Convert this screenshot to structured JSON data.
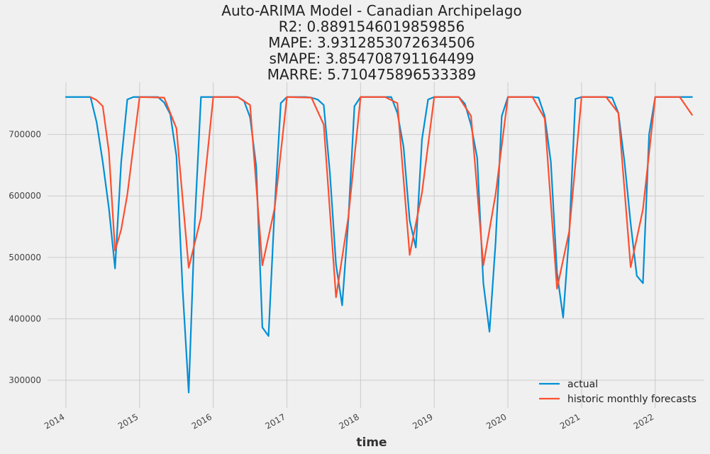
{
  "chart_data": {
    "type": "line",
    "title_lines": [
      "Auto-ARIMA Model - Canadian Archipelago",
      "R2: 0.8891546019859856",
      "MAPE: 3.9312853072634506",
      "sMAPE: 3.854708791164499",
      "MARRE: 5.710475896533389"
    ],
    "xlabel": "time",
    "ylabel": "",
    "x_ticks": [
      "2014",
      "2015",
      "2016",
      "2017",
      "2018",
      "2019",
      "2020",
      "2021",
      "2022"
    ],
    "y_ticks": [
      "300000",
      "400000",
      "500000",
      "600000",
      "700000"
    ],
    "ylim": [
      255000,
      785000
    ],
    "xlim": [
      "2013-10",
      "2022-09"
    ],
    "grid": true,
    "legend_position": "lower-right",
    "series": [
      {
        "name": "actual",
        "color": "#008fd5",
        "points": [
          [
            "2014-01",
            761000
          ],
          [
            "2014-02",
            761000
          ],
          [
            "2014-03",
            761000
          ],
          [
            "2014-04",
            761000
          ],
          [
            "2014-05",
            761000
          ],
          [
            "2014-06",
            720000
          ],
          [
            "2014-07",
            655000
          ],
          [
            "2014-08",
            580000
          ],
          [
            "2014-09",
            482000
          ],
          [
            "2014-10",
            655000
          ],
          [
            "2014-11",
            757000
          ],
          [
            "2014-12",
            761000
          ],
          [
            "2015-01",
            761000
          ],
          [
            "2015-02",
            761000
          ],
          [
            "2015-03",
            761000
          ],
          [
            "2015-04",
            761000
          ],
          [
            "2015-05",
            752000
          ],
          [
            "2015-06",
            733000
          ],
          [
            "2015-07",
            665000
          ],
          [
            "2015-08",
            450000
          ],
          [
            "2015-09",
            280000
          ],
          [
            "2015-10",
            560000
          ],
          [
            "2015-11",
            761000
          ],
          [
            "2015-12",
            761000
          ],
          [
            "2016-01",
            761000
          ],
          [
            "2016-02",
            761000
          ],
          [
            "2016-03",
            761000
          ],
          [
            "2016-04",
            761000
          ],
          [
            "2016-05",
            761000
          ],
          [
            "2016-06",
            755000
          ],
          [
            "2016-07",
            728000
          ],
          [
            "2016-08",
            648000
          ],
          [
            "2016-09",
            386000
          ],
          [
            "2016-10",
            372000
          ],
          [
            "2016-11",
            580000
          ],
          [
            "2016-12",
            751000
          ],
          [
            "2017-01",
            761000
          ],
          [
            "2017-02",
            761000
          ],
          [
            "2017-03",
            761000
          ],
          [
            "2017-04",
            761000
          ],
          [
            "2017-05",
            760000
          ],
          [
            "2017-06",
            757000
          ],
          [
            "2017-07",
            748000
          ],
          [
            "2017-08",
            638000
          ],
          [
            "2017-09",
            488000
          ],
          [
            "2017-10",
            422000
          ],
          [
            "2017-11",
            560000
          ],
          [
            "2017-12",
            746000
          ],
          [
            "2018-01",
            761000
          ],
          [
            "2018-02",
            761000
          ],
          [
            "2018-03",
            761000
          ],
          [
            "2018-04",
            761000
          ],
          [
            "2018-05",
            761000
          ],
          [
            "2018-06",
            761000
          ],
          [
            "2018-07",
            735000
          ],
          [
            "2018-08",
            680000
          ],
          [
            "2018-09",
            560000
          ],
          [
            "2018-10",
            516000
          ],
          [
            "2018-11",
            692000
          ],
          [
            "2018-12",
            757000
          ],
          [
            "2019-01",
            761000
          ],
          [
            "2019-02",
            761000
          ],
          [
            "2019-03",
            761000
          ],
          [
            "2019-04",
            761000
          ],
          [
            "2019-05",
            761000
          ],
          [
            "2019-06",
            750000
          ],
          [
            "2019-07",
            715000
          ],
          [
            "2019-08",
            662000
          ],
          [
            "2019-09",
            458000
          ],
          [
            "2019-10",
            379000
          ],
          [
            "2019-11",
            525000
          ],
          [
            "2019-12",
            730000
          ],
          [
            "2020-01",
            761000
          ],
          [
            "2020-02",
            761000
          ],
          [
            "2020-03",
            761000
          ],
          [
            "2020-04",
            761000
          ],
          [
            "2020-05",
            761000
          ],
          [
            "2020-06",
            760000
          ],
          [
            "2020-07",
            730000
          ],
          [
            "2020-08",
            655000
          ],
          [
            "2020-09",
            475000
          ],
          [
            "2020-10",
            402000
          ],
          [
            "2020-11",
            540000
          ],
          [
            "2020-12",
            758000
          ],
          [
            "2021-01",
            761000
          ],
          [
            "2021-02",
            761000
          ],
          [
            "2021-03",
            761000
          ],
          [
            "2021-04",
            761000
          ],
          [
            "2021-05",
            761000
          ],
          [
            "2021-06",
            760000
          ],
          [
            "2021-07",
            735000
          ],
          [
            "2021-08",
            655000
          ],
          [
            "2021-09",
            555000
          ],
          [
            "2021-10",
            470000
          ],
          [
            "2021-11",
            458000
          ],
          [
            "2021-12",
            700000
          ],
          [
            "2022-01",
            761000
          ],
          [
            "2022-02",
            761000
          ],
          [
            "2022-03",
            761000
          ],
          [
            "2022-04",
            761000
          ],
          [
            "2022-05",
            761000
          ],
          [
            "2022-06",
            761000
          ],
          [
            "2022-07",
            761000
          ]
        ]
      },
      {
        "name": "historic monthly forecasts",
        "color": "#fc4f30",
        "points": [
          [
            "2014-05",
            761000
          ],
          [
            "2014-06",
            756000
          ],
          [
            "2014-07",
            746000
          ],
          [
            "2014-08",
            672000
          ],
          [
            "2014-09",
            511000
          ],
          [
            "2014-10",
            545000
          ],
          [
            "2014-11",
            602000
          ],
          [
            "2015-01",
            761000
          ],
          [
            "2015-05",
            760000
          ],
          [
            "2015-07",
            710000
          ],
          [
            "2015-09",
            483000
          ],
          [
            "2015-11",
            565000
          ],
          [
            "2016-01",
            761000
          ],
          [
            "2016-05",
            761000
          ],
          [
            "2016-07",
            748000
          ],
          [
            "2016-09",
            487000
          ],
          [
            "2016-11",
            580000
          ],
          [
            "2017-01",
            761000
          ],
          [
            "2017-05",
            760000
          ],
          [
            "2017-07",
            716000
          ],
          [
            "2017-09",
            435000
          ],
          [
            "2017-11",
            565000
          ],
          [
            "2018-01",
            761000
          ],
          [
            "2018-05",
            761000
          ],
          [
            "2018-07",
            751000
          ],
          [
            "2018-09",
            504000
          ],
          [
            "2018-11",
            605000
          ],
          [
            "2019-01",
            761000
          ],
          [
            "2019-05",
            761000
          ],
          [
            "2019-07",
            730000
          ],
          [
            "2019-09",
            487000
          ],
          [
            "2019-11",
            603000
          ],
          [
            "2020-01",
            761000
          ],
          [
            "2020-05",
            761000
          ],
          [
            "2020-07",
            726000
          ],
          [
            "2020-09",
            449000
          ],
          [
            "2020-11",
            543000
          ],
          [
            "2021-01",
            761000
          ],
          [
            "2021-05",
            761000
          ],
          [
            "2021-07",
            735000
          ],
          [
            "2021-09",
            484000
          ],
          [
            "2021-11",
            578000
          ],
          [
            "2022-01",
            761000
          ],
          [
            "2022-05",
            761000
          ],
          [
            "2022-07",
            732000
          ]
        ]
      }
    ]
  }
}
